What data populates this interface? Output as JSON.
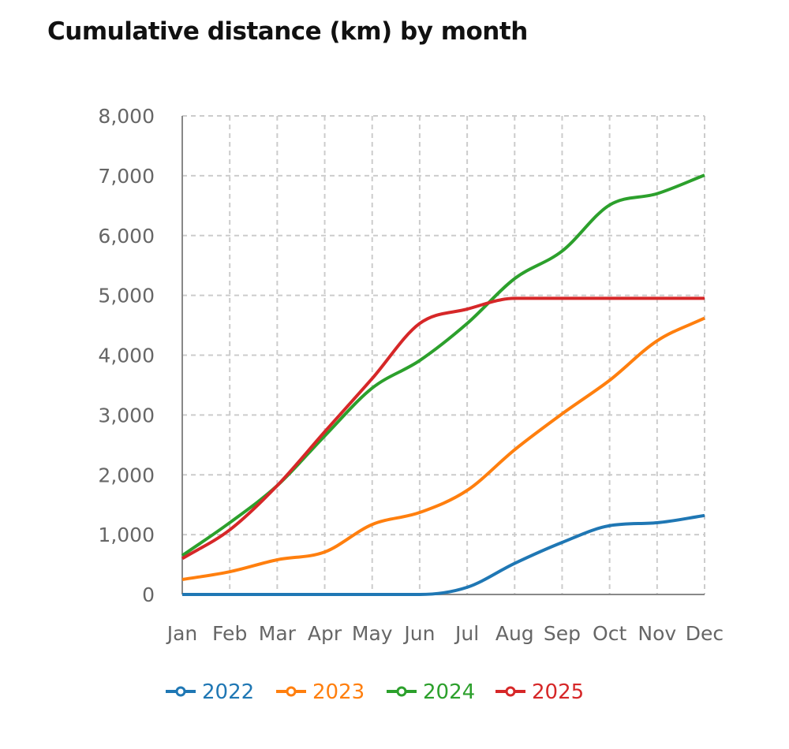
{
  "chart_data": {
    "type": "line",
    "title": "Cumulative distance (km) by month",
    "xlabel": "",
    "ylabel": "",
    "categories": [
      "Jan",
      "Feb",
      "Mar",
      "Apr",
      "May",
      "Jun",
      "Jul",
      "Aug",
      "Sep",
      "Oct",
      "Nov",
      "Dec"
    ],
    "ylim": [
      0,
      8000
    ],
    "yticks": [
      0,
      1000,
      2000,
      3000,
      4000,
      5000,
      6000,
      7000,
      8000
    ],
    "ytick_labels": [
      "0",
      "1,000",
      "2,000",
      "3,000",
      "4,000",
      "5,000",
      "6,000",
      "7,000",
      "8,000"
    ],
    "grid": true,
    "legend_position": "bottom",
    "series": [
      {
        "name": "2022",
        "color": "#1f77b4",
        "values": [
          0,
          0,
          0,
          0,
          0,
          0,
          120,
          520,
          870,
          1150,
          1200,
          1320
        ]
      },
      {
        "name": "2023",
        "color": "#ff7f0e",
        "values": [
          250,
          380,
          580,
          710,
          1170,
          1370,
          1740,
          2420,
          3020,
          3580,
          4240,
          4620
        ]
      },
      {
        "name": "2024",
        "color": "#2ca02c",
        "values": [
          650,
          1200,
          1820,
          2650,
          3450,
          3910,
          4530,
          5280,
          5740,
          6510,
          6700,
          7010
        ]
      },
      {
        "name": "2025",
        "color": "#d62728",
        "values": [
          600,
          1080,
          1820,
          2720,
          3610,
          4530,
          4770,
          4950,
          4950,
          4950,
          4950,
          4950
        ]
      }
    ]
  }
}
